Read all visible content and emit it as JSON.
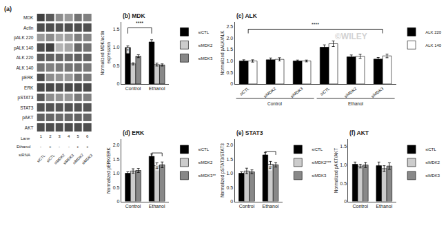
{
  "chart_data": [
    {
      "type": "heatmap",
      "title": "(a)",
      "rows": [
        "MDK",
        "Actin",
        "pALK 220",
        "pALK 140",
        "ALK 220",
        "ALK 140",
        "pERK",
        "ERK",
        "pSTAT3",
        "STAT3",
        "pAKT",
        "AKT"
      ],
      "categories": [
        "1",
        "2",
        "3",
        "4",
        "5",
        "6"
      ],
      "x_label": "Lane",
      "lane_rows": [
        {
          "name": "Ethanol",
          "labels": [
            "-",
            "+",
            "-",
            "-",
            "+",
            "+"
          ]
        },
        {
          "name": "siRNA",
          "labels": [
            "siCTL",
            "siCTL",
            "siMDK2",
            "siMDK3",
            "siMDK2",
            "siMDK3"
          ]
        }
      ],
      "cells": [
        [
          0.25,
          0.35,
          0.55,
          0.6,
          0.45,
          0.5
        ],
        [
          0.3,
          0.3,
          0.32,
          0.31,
          0.3,
          0.31
        ],
        [
          0.6,
          0.55,
          0.65,
          0.62,
          0.5,
          0.52
        ],
        [
          0.3,
          0.25,
          0.7,
          0.65,
          0.4,
          0.45
        ],
        [
          0.35,
          0.38,
          0.4,
          0.42,
          0.38,
          0.39
        ],
        [
          0.45,
          0.5,
          0.48,
          0.46,
          0.44,
          0.47
        ],
        [
          0.3,
          0.55,
          0.58,
          0.6,
          0.45,
          0.48
        ],
        [
          0.28,
          0.28,
          0.3,
          0.29,
          0.28,
          0.29
        ],
        [
          0.35,
          0.55,
          0.58,
          0.6,
          0.48,
          0.5
        ],
        [
          0.32,
          0.33,
          0.34,
          0.33,
          0.32,
          0.33
        ],
        [
          0.38,
          0.4,
          0.42,
          0.41,
          0.39,
          0.4
        ],
        [
          0.3,
          0.3,
          0.31,
          0.3,
          0.3,
          0.3
        ]
      ]
    },
    {
      "type": "bar",
      "title": "(b) MDK",
      "ylabel": "Normalized MDK/actin\nexpression",
      "categories": [
        "Control",
        "Ethanol"
      ],
      "series": [
        {
          "name": "siCTL",
          "color": "#000000",
          "values": [
            1.0,
            1.15
          ],
          "errors": [
            0.04,
            0.06
          ]
        },
        {
          "name": "siMDK2",
          "color": "#cccccc",
          "values": [
            0.55,
            0.53
          ],
          "errors": [
            0.03,
            0.04
          ]
        },
        {
          "name": "siMDK3",
          "color": "#888888",
          "values": [
            0.76,
            0.52
          ],
          "errors": [
            0.04,
            0.03
          ]
        }
      ],
      "ylim": [
        0,
        1.7
      ],
      "yticks": [
        0,
        0.5,
        {
          "value": 1.0,
          "label": "1.0"
        },
        1.5
      ],
      "annotations": [
        {
          "text": "*",
          "category": "Control",
          "series": "siCTL",
          "y": 0.82
        }
      ],
      "brackets": [
        {
          "from": {
            "category": "Control",
            "series": "siCTL"
          },
          "to": {
            "category": "Ethanol",
            "series": "siCTL"
          },
          "y": 1.54,
          "y_end": 1.38,
          "text": "****",
          "text_y": 1.56
        }
      ],
      "legend": "right",
      "grid": false
    },
    {
      "type": "bar",
      "title": "(c) ALK",
      "ylabel": "Normalized pALK/ALK",
      "categories": [
        "siCTL",
        "siMDK2",
        "siMDK3",
        "siCTL",
        "siMDK2",
        "siMDK3"
      ],
      "category_groups": [
        "Control",
        "Control",
        "Control",
        "Ethanol",
        "Ethanol",
        "Ethanol"
      ],
      "series": [
        {
          "name": "ALK 220",
          "color": "#000000",
          "values": [
            1.0,
            1.05,
            1.0,
            1.6,
            1.18,
            1.08
          ],
          "errors": [
            0.05,
            0.08,
            0.04,
            0.1,
            0.08,
            0.07
          ]
        },
        {
          "name": "ALK 140",
          "color": "#ffffff",
          "values": [
            1.0,
            1.07,
            1.0,
            1.75,
            1.2,
            1.22
          ],
          "errors": [
            0.05,
            0.07,
            0.04,
            0.12,
            0.09,
            0.08
          ]
        }
      ],
      "ylim": [
        0,
        2.7
      ],
      "yticks": [
        0,
        0.5,
        {
          "value": 1.0,
          "label": "1.0"
        },
        1.5,
        {
          "value": 2.0,
          "label": "2.0"
        },
        2.5
      ],
      "brackets": [
        {
          "from": {
            "group": "Control",
            "category": "siCTL"
          },
          "to": {
            "group": "Ethanol",
            "category": "siMDK3"
          },
          "y": 2.38,
          "y_end": 2.2,
          "text": "****",
          "text_y": 2.42
        }
      ],
      "watermark": "©WILEY",
      "legend": "right",
      "grid": false
    },
    {
      "type": "bar",
      "title": "(d) ERK",
      "ylabel": "Normalized pERK/ERK",
      "categories": [
        "Control",
        "Ethanol"
      ],
      "series": [
        {
          "name": "siCTL",
          "color": "#000000",
          "values": [
            1.0,
            1.6
          ],
          "errors": [
            0.05,
            0.08
          ]
        },
        {
          "name": "siMDK2",
          "color": "#cccccc",
          "values": [
            1.08,
            1.27
          ],
          "errors": [
            0.08,
            0.1
          ]
        },
        {
          "name": "siMDK3**",
          "color": "#888888",
          "values": [
            1.1,
            1.3
          ],
          "errors": [
            0.07,
            0.1
          ]
        }
      ],
      "ylim": [
        0,
        2.2
      ],
      "yticks": [
        0,
        0.5,
        {
          "value": 1.0,
          "label": "1.0"
        },
        1.5,
        {
          "value": 2.0,
          "label": "2.0"
        }
      ],
      "annotations": [
        {
          "text": "#",
          "category": "Ethanol",
          "series": "siMDK2",
          "y": 1.1
        }
      ],
      "brackets": [
        {
          "from": {
            "category": "Ethanol",
            "series": "siCTL"
          },
          "to": {
            "category": "Ethanol",
            "series": "siMDK3**"
          },
          "y": 1.72,
          "y_end": 1.6
        }
      ],
      "legend": "right",
      "grid": false
    },
    {
      "type": "bar",
      "title": "(e) STAT3",
      "ylabel": "Normalized pSTAT3/STAT3",
      "categories": [
        "Control",
        "Ethanol"
      ],
      "series": [
        {
          "name": "siCTL",
          "color": "#000000",
          "values": [
            1.0,
            1.65
          ],
          "errors": [
            0.05,
            0.09
          ]
        },
        {
          "name": "siMDK2***",
          "color": "#cccccc",
          "values": [
            1.08,
            1.32
          ],
          "errors": [
            0.1,
            0.1
          ]
        },
        {
          "name": "siMDK3",
          "color": "#888888",
          "values": [
            1.05,
            1.3
          ],
          "errors": [
            0.07,
            0.08
          ]
        }
      ],
      "ylim": [
        0,
        2.2
      ],
      "yticks": [
        0,
        0.5,
        {
          "value": 1.0,
          "label": "1.0"
        },
        1.5,
        {
          "value": 2.0,
          "label": "2.0"
        }
      ],
      "annotations": [
        {
          "text": "#",
          "category": "Ethanol",
          "series": "siMDK2***",
          "y": 1.1
        }
      ],
      "brackets": [
        {
          "from": {
            "category": "Ethanol",
            "series": "siCTL"
          },
          "to": {
            "category": "Ethanol",
            "series": "siMDK3"
          },
          "y": 1.77,
          "y_end": 1.65
        }
      ],
      "legend": "right",
      "grid": false
    },
    {
      "type": "bar",
      "title": "(f) AKT",
      "ylabel": "Normalized pAKT/AKT",
      "categories": [
        "Control",
        "Ethanol"
      ],
      "series": [
        {
          "name": "siCTL",
          "color": "#000000",
          "values": [
            1.02,
            0.98
          ],
          "errors": [
            0.06,
            0.1
          ]
        },
        {
          "name": "siMDK2",
          "color": "#cccccc",
          "values": [
            0.97,
            0.9
          ],
          "errors": [
            0.05,
            0.08
          ]
        },
        {
          "name": "siMDK3",
          "color": "#888888",
          "values": [
            1.0,
            0.97
          ],
          "errors": [
            0.07,
            0.09
          ]
        }
      ],
      "ylim": [
        0,
        1.7
      ],
      "yticks": [
        0,
        0.5,
        {
          "value": 1.0,
          "label": "1.0"
        },
        1.5
      ],
      "legend": "right",
      "grid": false
    }
  ]
}
